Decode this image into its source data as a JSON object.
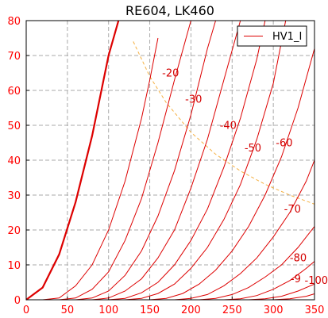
{
  "chart_data": {
    "type": "line",
    "title": "RE604, LK460",
    "xlabel": "",
    "ylabel": "",
    "xlim": [
      0,
      350
    ],
    "ylim": [
      0,
      80
    ],
    "xticks": [
      0,
      50,
      100,
      150,
      200,
      250,
      300,
      350
    ],
    "yticks": [
      0,
      10,
      20,
      30,
      40,
      50,
      60,
      70,
      80
    ],
    "grid": true,
    "legend": {
      "placement": "top-right",
      "entries": [
        "HV1_I"
      ]
    },
    "colors": {
      "curve": "#dd0000",
      "ticks": "#ff0000",
      "dissipation": "#f5b041",
      "grid": "#aaaaaa",
      "frame": "#000000"
    },
    "series": [
      {
        "label": "",
        "emphasis": true,
        "x": [
          0,
          20,
          40,
          60,
          80,
          100,
          112
        ],
        "y": [
          0,
          3.5,
          13,
          28,
          47,
          70,
          80
        ]
      },
      {
        "label": "",
        "x": [
          20,
          40,
          60,
          80,
          100,
          120,
          140,
          150,
          160
        ],
        "y": [
          0,
          0.5,
          4,
          10,
          20,
          34,
          52,
          63,
          75
        ]
      },
      {
        "label": "-20",
        "x": [
          40,
          60,
          80,
          100,
          120,
          140,
          160,
          180,
          200
        ],
        "y": [
          0,
          0.5,
          3,
          8,
          17,
          29,
          45,
          63,
          80
        ]
      },
      {
        "label": "-30",
        "x": [
          60,
          80,
          100,
          120,
          140,
          160,
          180,
          200,
          220,
          230
        ],
        "y": [
          0,
          0.5,
          2.5,
          7,
          14,
          24,
          37,
          53,
          72,
          80
        ]
      },
      {
        "label": "-40",
        "x": [
          80,
          100,
          120,
          140,
          160,
          180,
          200,
          220,
          240,
          260
        ],
        "y": [
          0,
          0.5,
          2.5,
          6,
          12,
          20,
          32,
          46,
          63,
          80
        ]
      },
      {
        "label": "-50",
        "x": [
          100,
          120,
          140,
          160,
          180,
          200,
          220,
          240,
          260,
          280,
          290
        ],
        "y": [
          0,
          0.4,
          2,
          5,
          10,
          17,
          26,
          38,
          52,
          69,
          80
        ]
      },
      {
        "label": "-60",
        "x": [
          120,
          140,
          160,
          180,
          200,
          220,
          240,
          260,
          280,
          300,
          315
        ],
        "y": [
          0,
          0.4,
          1.8,
          4.5,
          9,
          15,
          23,
          33,
          46,
          62,
          80
        ]
      },
      {
        "label": "-70",
        "x": [
          150,
          170,
          190,
          210,
          230,
          250,
          270,
          290,
          310,
          330,
          350
        ],
        "y": [
          0,
          0.4,
          1.8,
          4.5,
          8.5,
          14,
          21,
          30,
          41,
          55,
          72
        ]
      },
      {
        "label": "-80",
        "x": [
          180,
          200,
          220,
          240,
          260,
          280,
          300,
          320,
          340,
          350
        ],
        "y": [
          0,
          0.4,
          1.5,
          4,
          7.5,
          12,
          18,
          25,
          34,
          40
        ]
      },
      {
        "label": "-9",
        "x": [
          210,
          230,
          250,
          270,
          290,
          310,
          330,
          350
        ],
        "y": [
          0,
          0.4,
          1.5,
          3.5,
          6.5,
          10,
          15,
          21
        ]
      },
      {
        "label": "-100",
        "x": [
          240,
          260,
          280,
          300,
          320,
          340,
          350
        ],
        "y": [
          0,
          0.3,
          1.2,
          3,
          5.5,
          9,
          11
        ]
      },
      {
        "label": "",
        "x": [
          270,
          290,
          310,
          330,
          350
        ],
        "y": [
          0,
          0.3,
          1,
          2.5,
          4.5
        ]
      },
      {
        "label": "",
        "x": [
          300,
          320,
          340,
          350
        ],
        "y": [
          0,
          0.3,
          1,
          1.7
        ]
      }
    ],
    "dissipation_curve": {
      "x": [
        130,
        150,
        170,
        200,
        230,
        260,
        290,
        320,
        350
      ],
      "y": [
        74,
        64,
        56.5,
        48,
        41.7,
        36.9,
        33.1,
        30,
        27.4
      ]
    }
  }
}
